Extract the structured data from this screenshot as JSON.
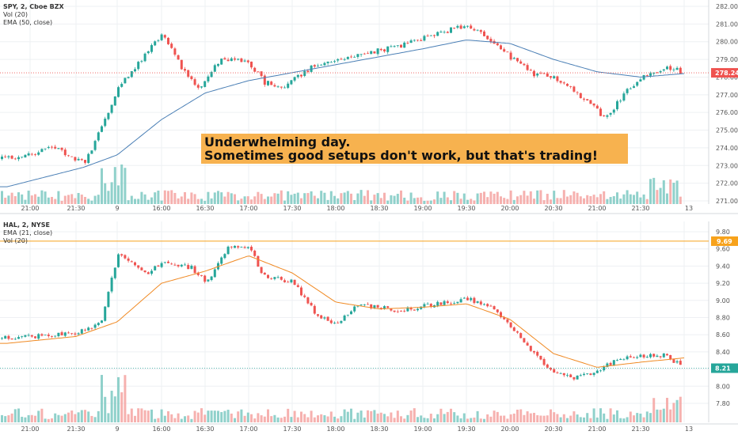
{
  "colors": {
    "up": "#26a69a",
    "down": "#ef5350",
    "vol_up": "#7cc9c2",
    "vol_down": "#f4a3a1",
    "spy_ema": "#4a7fb5",
    "hal_ema": "#f08a24",
    "grid": "#eef0f3",
    "axis_text": "#555555",
    "price_tag_red": "#ef5350",
    "price_tag_teal": "#26a69a",
    "price_tag_orange": "#f7a21b",
    "callout_bg": "#f7b24f"
  },
  "annotation": {
    "line1": "Underwhelming day.",
    "line2": "Sometimes good setups don't work, but that's trading!"
  },
  "time_axis": [
    "21:00",
    "21:30",
    "9",
    "16:00",
    "16:30",
    "17:00",
    "17:30",
    "18:00",
    "18:30",
    "19:00",
    "19:30",
    "20:00",
    "20:30",
    "21:00",
    "21:30",
    "13"
  ],
  "chart_data": [
    {
      "type": "candlestick",
      "legend": [
        "SPY, 2, Cboe BZX",
        "Vol (20)",
        "EMA (50, close)"
      ],
      "y_ticks": [
        "282.00",
        "281.00",
        "280.00",
        "279.00",
        "278.00",
        "277.00",
        "276.00",
        "275.00",
        "274.00",
        "273.00",
        "272.00",
        "271.00"
      ],
      "ylim": [
        270.8,
        282.3
      ],
      "last_price": "278.24",
      "approx_close_path": [
        {
          "x": "20:45",
          "y": 273.4
        },
        {
          "x": "21:15",
          "y": 274.0
        },
        {
          "x": "21:35",
          "y": 273.1
        },
        {
          "x": "21:45",
          "y": 275.0
        },
        {
          "x": "9",
          "y": 277.4
        },
        {
          "x": "15:50",
          "y": 279.5
        },
        {
          "x": "16:00",
          "y": 280.4
        },
        {
          "x": "16:15",
          "y": 278.3
        },
        {
          "x": "16:25",
          "y": 277.3
        },
        {
          "x": "16:40",
          "y": 279.1
        },
        {
          "x": "17:00",
          "y": 278.8
        },
        {
          "x": "17:10",
          "y": 277.7
        },
        {
          "x": "17:25",
          "y": 277.5
        },
        {
          "x": "17:45",
          "y": 278.7
        },
        {
          "x": "18:15",
          "y": 279.3
        },
        {
          "x": "18:45",
          "y": 279.8
        },
        {
          "x": "19:15",
          "y": 280.6
        },
        {
          "x": "19:30",
          "y": 280.9
        },
        {
          "x": "19:45",
          "y": 280.2
        },
        {
          "x": "20:00",
          "y": 279.1
        },
        {
          "x": "20:15",
          "y": 278.2
        },
        {
          "x": "20:35",
          "y": 277.8
        },
        {
          "x": "20:55",
          "y": 276.4
        },
        {
          "x": "21:05",
          "y": 275.7
        },
        {
          "x": "21:20",
          "y": 277.2
        },
        {
          "x": "21:35",
          "y": 278.3
        },
        {
          "x": "21:50",
          "y": 278.5
        },
        {
          "x": "13",
          "y": 278.24
        }
      ],
      "ema_path": [
        {
          "x": "20:45",
          "y": 271.8
        },
        {
          "x": "21:35",
          "y": 272.9
        },
        {
          "x": "9",
          "y": 273.6
        },
        {
          "x": "16:00",
          "y": 275.6
        },
        {
          "x": "16:30",
          "y": 277.1
        },
        {
          "x": "17:00",
          "y": 277.8
        },
        {
          "x": "18:00",
          "y": 278.7
        },
        {
          "x": "19:00",
          "y": 279.6
        },
        {
          "x": "19:30",
          "y": 280.1
        },
        {
          "x": "20:00",
          "y": 279.9
        },
        {
          "x": "20:30",
          "y": 279.0
        },
        {
          "x": "21:00",
          "y": 278.3
        },
        {
          "x": "21:30",
          "y": 278.0
        },
        {
          "x": "13",
          "y": 278.2
        }
      ]
    },
    {
      "type": "candlestick",
      "legend": [
        "HAL, 2, NYSE",
        "EMA (21, close)",
        "Vol (20)"
      ],
      "y_ticks": [
        "9.80",
        "9.60",
        "9.40",
        "9.20",
        "9.00",
        "8.80",
        "8.60",
        "8.40",
        "8.20",
        "8.00",
        "7.80"
      ],
      "ylim": [
        7.75,
        9.88
      ],
      "last_price": "8.21",
      "ref_price": "9.69",
      "approx_close_path": [
        {
          "x": "20:45",
          "y": 8.56
        },
        {
          "x": "21:30",
          "y": 8.62
        },
        {
          "x": "21:45",
          "y": 8.72
        },
        {
          "x": "9",
          "y": 9.55
        },
        {
          "x": "15:50",
          "y": 9.32
        },
        {
          "x": "16:00",
          "y": 9.45
        },
        {
          "x": "16:20",
          "y": 9.38
        },
        {
          "x": "16:30",
          "y": 9.2
        },
        {
          "x": "16:45",
          "y": 9.62
        },
        {
          "x": "17:00",
          "y": 9.6
        },
        {
          "x": "17:10",
          "y": 9.28
        },
        {
          "x": "17:30",
          "y": 9.22
        },
        {
          "x": "17:45",
          "y": 8.85
        },
        {
          "x": "18:00",
          "y": 8.72
        },
        {
          "x": "18:15",
          "y": 8.95
        },
        {
          "x": "18:45",
          "y": 8.88
        },
        {
          "x": "19:15",
          "y": 8.98
        },
        {
          "x": "19:30",
          "y": 9.01
        },
        {
          "x": "19:45",
          "y": 8.95
        },
        {
          "x": "20:00",
          "y": 8.7
        },
        {
          "x": "20:15",
          "y": 8.38
        },
        {
          "x": "20:30",
          "y": 8.15
        },
        {
          "x": "20:45",
          "y": 8.1
        },
        {
          "x": "21:00",
          "y": 8.18
        },
        {
          "x": "21:15",
          "y": 8.33
        },
        {
          "x": "21:30",
          "y": 8.35
        },
        {
          "x": "21:45",
          "y": 8.36
        },
        {
          "x": "13",
          "y": 8.21
        }
      ],
      "ema_path": [
        {
          "x": "20:45",
          "y": 8.5
        },
        {
          "x": "21:30",
          "y": 8.58
        },
        {
          "x": "9",
          "y": 8.75
        },
        {
          "x": "16:00",
          "y": 9.2
        },
        {
          "x": "16:30",
          "y": 9.34
        },
        {
          "x": "17:00",
          "y": 9.52
        },
        {
          "x": "17:30",
          "y": 9.32
        },
        {
          "x": "18:00",
          "y": 8.98
        },
        {
          "x": "18:30",
          "y": 8.9
        },
        {
          "x": "19:00",
          "y": 8.92
        },
        {
          "x": "19:30",
          "y": 8.96
        },
        {
          "x": "20:00",
          "y": 8.78
        },
        {
          "x": "20:30",
          "y": 8.38
        },
        {
          "x": "21:00",
          "y": 8.22
        },
        {
          "x": "21:30",
          "y": 8.28
        },
        {
          "x": "13",
          "y": 8.33
        }
      ]
    }
  ]
}
